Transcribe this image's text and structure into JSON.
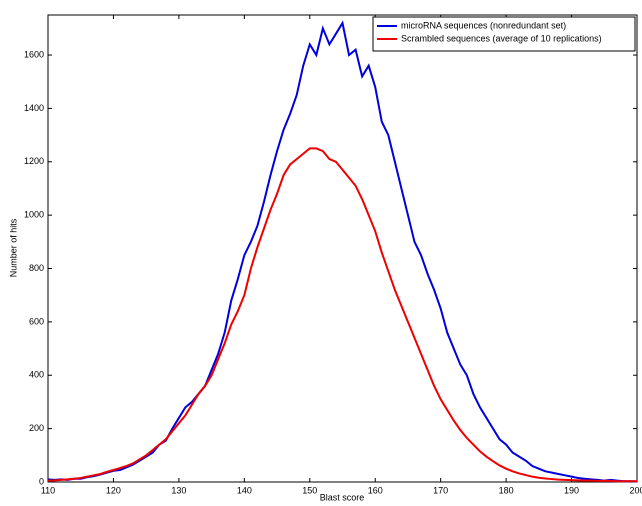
{
  "chart_data": {
    "type": "line",
    "x_label": "Blast score",
    "y_label": "Number of hits",
    "x": [
      110,
      111,
      112,
      113,
      114,
      115,
      116,
      117,
      118,
      119,
      120,
      121,
      122,
      123,
      124,
      125,
      126,
      127,
      128,
      129,
      130,
      131,
      132,
      133,
      134,
      135,
      136,
      137,
      138,
      139,
      140,
      141,
      142,
      143,
      144,
      145,
      146,
      147,
      148,
      149,
      150,
      151,
      152,
      153,
      154,
      155,
      156,
      157,
      158,
      159,
      160,
      161,
      162,
      163,
      164,
      165,
      166,
      167,
      168,
      169,
      170,
      171,
      172,
      173,
      174,
      175,
      176,
      177,
      178,
      179,
      180,
      181,
      182,
      183,
      184,
      185,
      186,
      187,
      188,
      189,
      190,
      191,
      192,
      193,
      194,
      195,
      196,
      197,
      198,
      199,
      200
    ],
    "series": [
      {
        "name": "microRNA sequences (nonredundant set)",
        "color": "#0000dd",
        "values": [
          10,
          8,
          10,
          8,
          12,
          12,
          18,
          22,
          28,
          35,
          42,
          45,
          55,
          65,
          80,
          95,
          110,
          140,
          155,
          200,
          240,
          280,
          300,
          330,
          360,
          420,
          480,
          560,
          680,
          760,
          850,
          900,
          960,
          1050,
          1150,
          1240,
          1320,
          1380,
          1450,
          1560,
          1640,
          1600,
          1700,
          1640,
          1680,
          1720,
          1600,
          1620,
          1520,
          1560,
          1480,
          1350,
          1300,
          1200,
          1100,
          1000,
          900,
          850,
          780,
          720,
          650,
          560,
          500,
          440,
          400,
          330,
          280,
          240,
          200,
          160,
          140,
          110,
          95,
          80,
          60,
          50,
          40,
          35,
          30,
          25,
          20,
          15,
          12,
          10,
          8,
          5,
          8,
          5,
          3,
          3,
          2
        ]
      },
      {
        "name": "Scrambled sequences (average of 10 replications)",
        "color": "#ee0000",
        "values": [
          5,
          6,
          8,
          10,
          12,
          15,
          20,
          25,
          30,
          38,
          45,
          52,
          60,
          70,
          85,
          100,
          120,
          140,
          160,
          190,
          220,
          250,
          290,
          330,
          360,
          400,
          460,
          520,
          590,
          640,
          700,
          800,
          880,
          950,
          1020,
          1080,
          1150,
          1190,
          1210,
          1230,
          1250,
          1250,
          1240,
          1210,
          1200,
          1170,
          1140,
          1110,
          1060,
          1000,
          940,
          860,
          790,
          720,
          660,
          600,
          540,
          480,
          420,
          360,
          310,
          270,
          230,
          195,
          165,
          140,
          115,
          95,
          78,
          62,
          50,
          40,
          32,
          26,
          20,
          16,
          13,
          11,
          9,
          8,
          7,
          6,
          5,
          5,
          4,
          4,
          4,
          3,
          3,
          3,
          3
        ]
      }
    ],
    "xlim": [
      110,
      200
    ],
    "ylim": [
      0,
      1750
    ],
    "xticks": [
      110,
      120,
      130,
      140,
      150,
      160,
      170,
      180,
      190,
      200
    ],
    "yticks": [
      0,
      200,
      400,
      600,
      800,
      1000,
      1200,
      1400,
      1600
    ],
    "legend": "upper right"
  }
}
